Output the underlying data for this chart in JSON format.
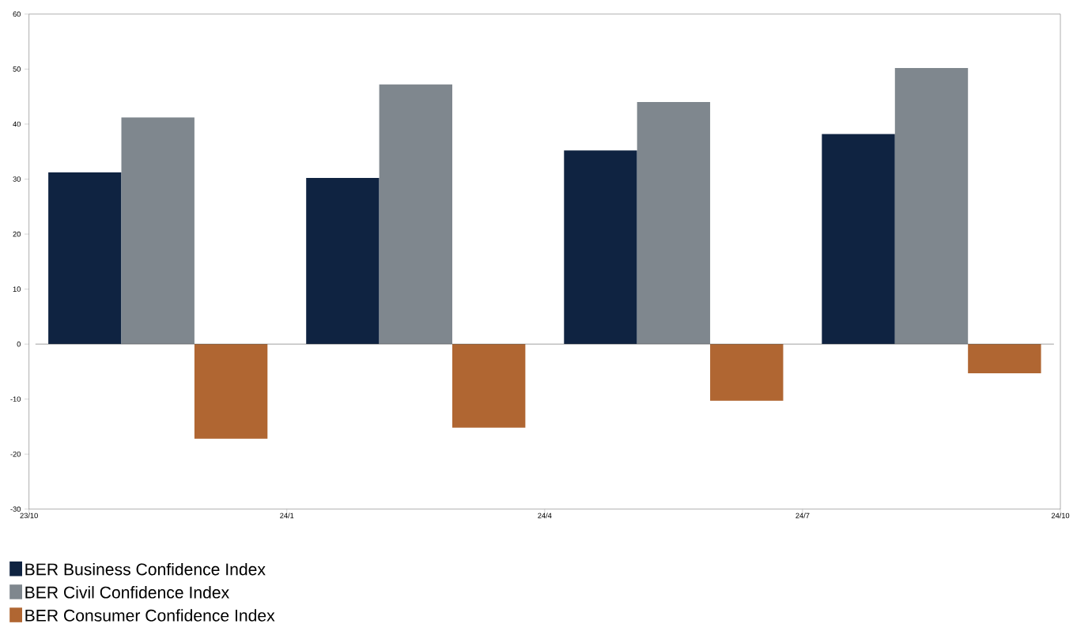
{
  "chart_data": {
    "type": "bar",
    "categories": [
      null,
      null,
      null,
      null
    ],
    "series": [
      {
        "name": "BER Business Confidence Index",
        "color": "#0f2341",
        "values": [
          31.2,
          30.2,
          35.2,
          38.2
        ]
      },
      {
        "name": "BER Civil Confidence Index",
        "color": "#7f878e",
        "values": [
          41.2,
          47.2,
          44.0,
          50.2
        ]
      },
      {
        "name": "BER Consumer Confidence Index",
        "color": "#b06632",
        "values": [
          -17.2,
          -15.2,
          -10.3,
          -5.3
        ]
      }
    ],
    "annotations": [
      "23/10",
      "24/1",
      "24/4",
      "24/7",
      "24/10"
    ],
    "ylim": [
      -30,
      60
    ],
    "yticks": [
      -30,
      -20,
      -10,
      0,
      10,
      20,
      30,
      40,
      50,
      60
    ],
    "legend": "bottom"
  }
}
